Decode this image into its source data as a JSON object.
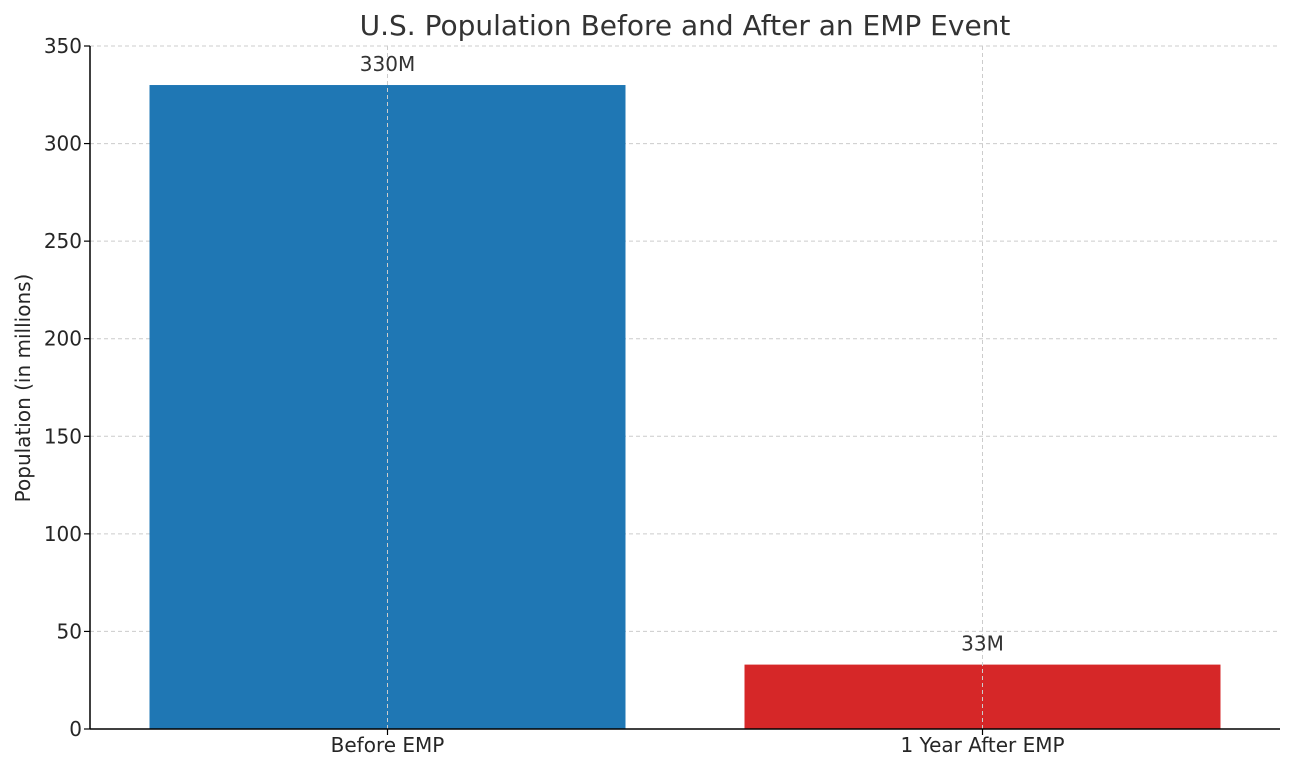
{
  "chart_data": {
    "type": "bar",
    "title": "U.S. Population Before and After an EMP Event",
    "xlabel": "",
    "ylabel": "Population (in millions)",
    "categories": [
      "Before EMP",
      "1 Year After EMP"
    ],
    "values": [
      330,
      33
    ],
    "data_labels": [
      "330M",
      "33M"
    ],
    "colors": [
      "#1f77b4",
      "#d62728"
    ],
    "ylim": [
      0,
      350
    ],
    "yticks": [
      0,
      50,
      100,
      150,
      200,
      250,
      300,
      350
    ],
    "grid": true,
    "legend": "none"
  }
}
